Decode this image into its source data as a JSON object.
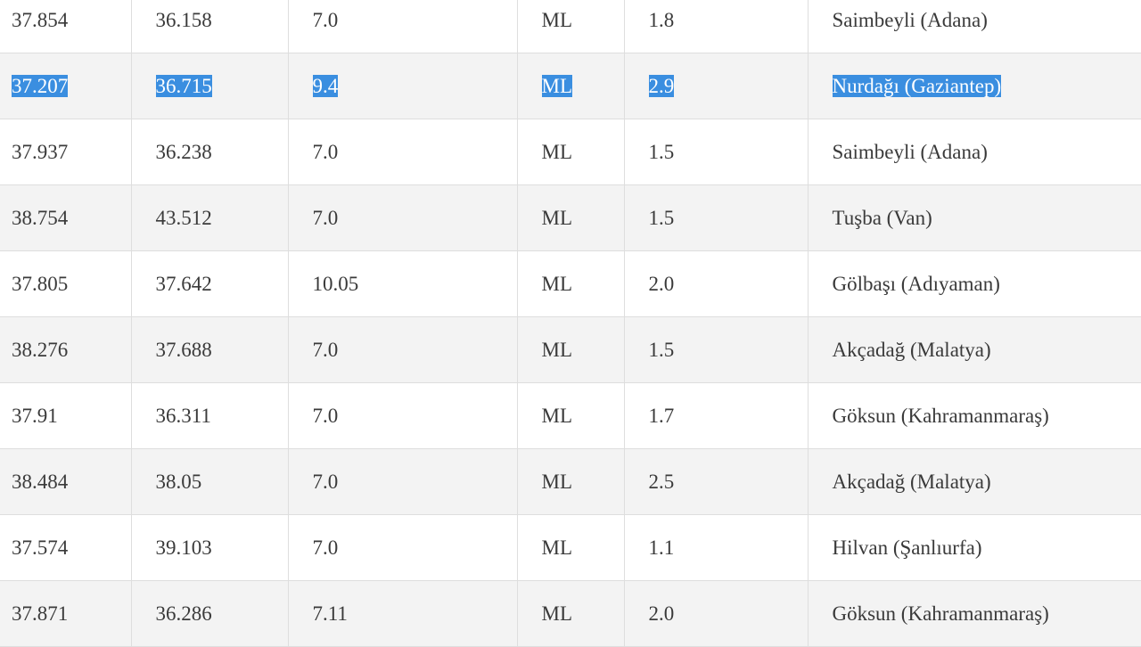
{
  "table": {
    "rows": [
      {
        "lat": "37.854",
        "lon": "36.158",
        "depth": "7.0",
        "type": "ML",
        "mag": "1.8",
        "place": "Saimbeyli (Adana)",
        "selected": false
      },
      {
        "lat": "37.207",
        "lon": "36.715",
        "depth": "9.4",
        "type": "ML",
        "mag": "2.9",
        "place": "Nurdağı (Gaziantep)",
        "selected": true
      },
      {
        "lat": "37.937",
        "lon": "36.238",
        "depth": "7.0",
        "type": "ML",
        "mag": "1.5",
        "place": "Saimbeyli (Adana)",
        "selected": false
      },
      {
        "lat": "38.754",
        "lon": "43.512",
        "depth": "7.0",
        "type": "ML",
        "mag": "1.5",
        "place": "Tuşba (Van)",
        "selected": false
      },
      {
        "lat": "37.805",
        "lon": "37.642",
        "depth": "10.05",
        "type": "ML",
        "mag": "2.0",
        "place": "Gölbaşı (Adıyaman)",
        "selected": false
      },
      {
        "lat": "38.276",
        "lon": "37.688",
        "depth": "7.0",
        "type": "ML",
        "mag": "1.5",
        "place": "Akçadağ (Malatya)",
        "selected": false
      },
      {
        "lat": "37.91",
        "lon": "36.311",
        "depth": "7.0",
        "type": "ML",
        "mag": "1.7",
        "place": "Göksun (Kahramanmaraş)",
        "selected": false
      },
      {
        "lat": "38.484",
        "lon": "38.05",
        "depth": "7.0",
        "type": "ML",
        "mag": "2.5",
        "place": "Akçadağ (Malatya)",
        "selected": false
      },
      {
        "lat": "37.574",
        "lon": "39.103",
        "depth": "7.0",
        "type": "ML",
        "mag": "1.1",
        "place": "Hilvan (Şanlıurfa)",
        "selected": false
      },
      {
        "lat": "37.871",
        "lon": "36.286",
        "depth": "7.11",
        "type": "ML",
        "mag": "2.0",
        "place": "Göksun (Kahramanmaraş)",
        "selected": false
      }
    ]
  },
  "colors": {
    "selection": "#3a8ee0",
    "row_alt": "#f3f3f3",
    "border": "#dedede",
    "text": "#3a3a3a"
  }
}
